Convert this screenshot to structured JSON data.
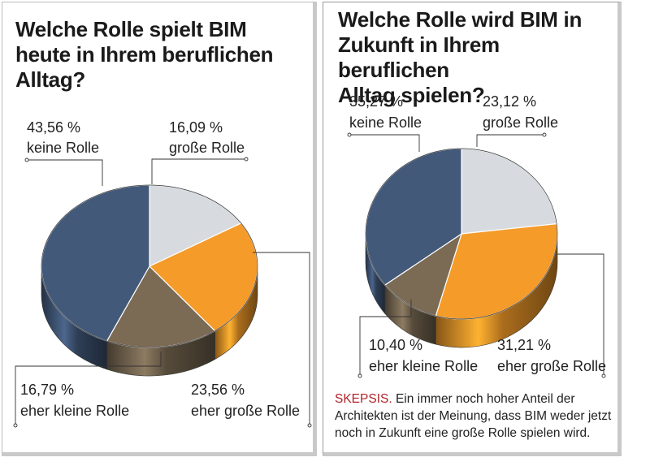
{
  "colors": {
    "keine Rolle": "#42597a",
    "große Rolle": "#d7dbe0",
    "eher große Rolle": "#f49b2a",
    "eher kleine Rolle": "#7b6b55"
  },
  "left": {
    "title": "Welche Rolle spielt BIM\nheute in Ihrem beruflichen\nAlltag?",
    "labels": {
      "keine_pct": "43,56 %",
      "keine_name": "keine Rolle",
      "gross_pct": "16,09 %",
      "gross_name": "große Rolle",
      "kleine_pct": "16,79 %",
      "kleine_name": "eher kleine Rolle",
      "ehergross_pct": "23,56 %",
      "ehergross_name": "eher große Rolle"
    }
  },
  "right": {
    "title": "Welche Rolle wird BIM in\nZukunft in Ihrem beruflichen\nAlltag spielen?",
    "labels": {
      "keine_pct": "35,27 %",
      "keine_name": "keine Rolle",
      "gross_pct": "23,12 %",
      "gross_name": "große Rolle",
      "kleine_pct": "10,40 %",
      "kleine_name": "eher kleine Rolle",
      "ehergross_pct": "31,21 %",
      "ehergross_name": "eher große Rolle"
    },
    "caption_keyword": "SKEPSIS.",
    "caption_text": " Ein immer noch hoher Anteil der Architekten ist der Meinung, dass BIM weder jetzt noch in Zukunft eine große Rolle spielen wird."
  },
  "chart_data": [
    {
      "type": "pie",
      "title": "Welche Rolle spielt BIM heute in Ihrem beruflichen Alltag?",
      "categories": [
        "große Rolle",
        "eher große Rolle",
        "eher kleine Rolle",
        "keine Rolle"
      ],
      "values": [
        16.09,
        23.56,
        16.79,
        43.56
      ]
    },
    {
      "type": "pie",
      "title": "Welche Rolle wird BIM in Zukunft in Ihrem beruflichen Alltag spielen?",
      "categories": [
        "große Rolle",
        "eher große Rolle",
        "eher kleine Rolle",
        "keine Rolle"
      ],
      "values": [
        23.12,
        31.21,
        10.4,
        35.27
      ]
    }
  ]
}
